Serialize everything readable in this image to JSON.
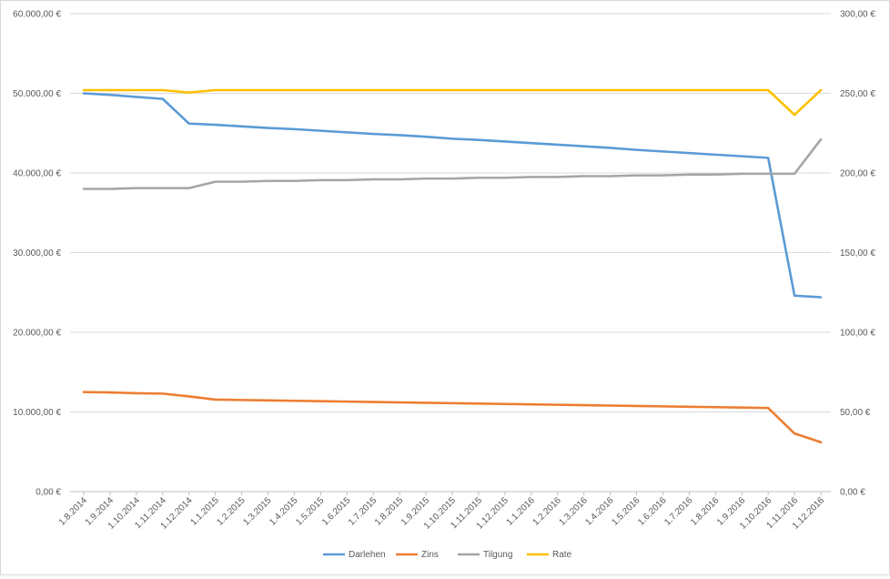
{
  "chart_data": {
    "type": "line",
    "categories": [
      "1.8.2014",
      "1.9.2014",
      "1.10.2014",
      "1.11.2014",
      "1.12.2014",
      "1.1.2015",
      "1.2.2015",
      "1.3.2015",
      "1.4.2015",
      "1.5.2015",
      "1.6.2015",
      "1.7.2015",
      "1.8.2015",
      "1.9.2015",
      "1.10.2015",
      "1.11.2015",
      "1.12.2015",
      "1.1.2016",
      "1.2.2016",
      "1.3.2016",
      "1.4.2016",
      "1.5.2016",
      "1.6.2016",
      "1.7.2016",
      "1.8.2016",
      "1.9.2016",
      "1.10.2016",
      "1.11.2016",
      "1.12.2016"
    ],
    "y_left": {
      "min": 0,
      "max": 60000,
      "step": 10000,
      "ticks": [
        "0,00 €",
        "10.000,00 €",
        "20.000,00 €",
        "30.000,00 €",
        "40.000,00 €",
        "50.000,00 €",
        "60.000,00 €"
      ]
    },
    "y_right": {
      "min": 0,
      "max": 300,
      "step": 50,
      "ticks": [
        "0,00 €",
        "50,00 €",
        "100,00 €",
        "150,00 €",
        "200,00 €",
        "250,00 €",
        "300,00 €"
      ]
    },
    "grid": true,
    "legend_position": "bottom",
    "series": [
      {
        "name": "Darlehen",
        "axis": "left",
        "color": "#5b9bd5",
        "values": [
          50000,
          49800,
          49550,
          49300,
          46200,
          46050,
          45850,
          45650,
          45500,
          45300,
          45100,
          44900,
          44750,
          44550,
          44300,
          44150,
          43950,
          43750,
          43550,
          43350,
          43150,
          42900,
          42700,
          42500,
          42300,
          42100,
          41900,
          24600,
          24400
        ]
      },
      {
        "name": "Zins",
        "axis": "left",
        "color": "#ed7d31",
        "values": [
          12500,
          12450,
          12350,
          12300,
          11950,
          11550,
          11500,
          11450,
          11400,
          11350,
          11300,
          11250,
          11200,
          11150,
          11100,
          11050,
          11000,
          10950,
          10900,
          10850,
          10800,
          10750,
          10700,
          10650,
          10600,
          10550,
          10500,
          7300,
          6200
        ]
      },
      {
        "name": "Tilgung",
        "axis": "right",
        "color": "#a5a5a5",
        "values": [
          190,
          190,
          190.5,
          190.5,
          190.5,
          194.5,
          194.5,
          195,
          195,
          195.5,
          195.5,
          196,
          196,
          196.5,
          196.5,
          197,
          197,
          197.5,
          197.5,
          198,
          198,
          198.5,
          198.5,
          199,
          199,
          199.5,
          199.5,
          199.5,
          221
        ]
      },
      {
        "name": "Rate",
        "axis": "right",
        "color": "#ffc000",
        "values": [
          252,
          252,
          252,
          252,
          250.5,
          252,
          252,
          252,
          252,
          252,
          252,
          252,
          252,
          252,
          252,
          252,
          252,
          252,
          252,
          252,
          252,
          252,
          252,
          252,
          252,
          252,
          252,
          236.5,
          252
        ]
      }
    ]
  }
}
